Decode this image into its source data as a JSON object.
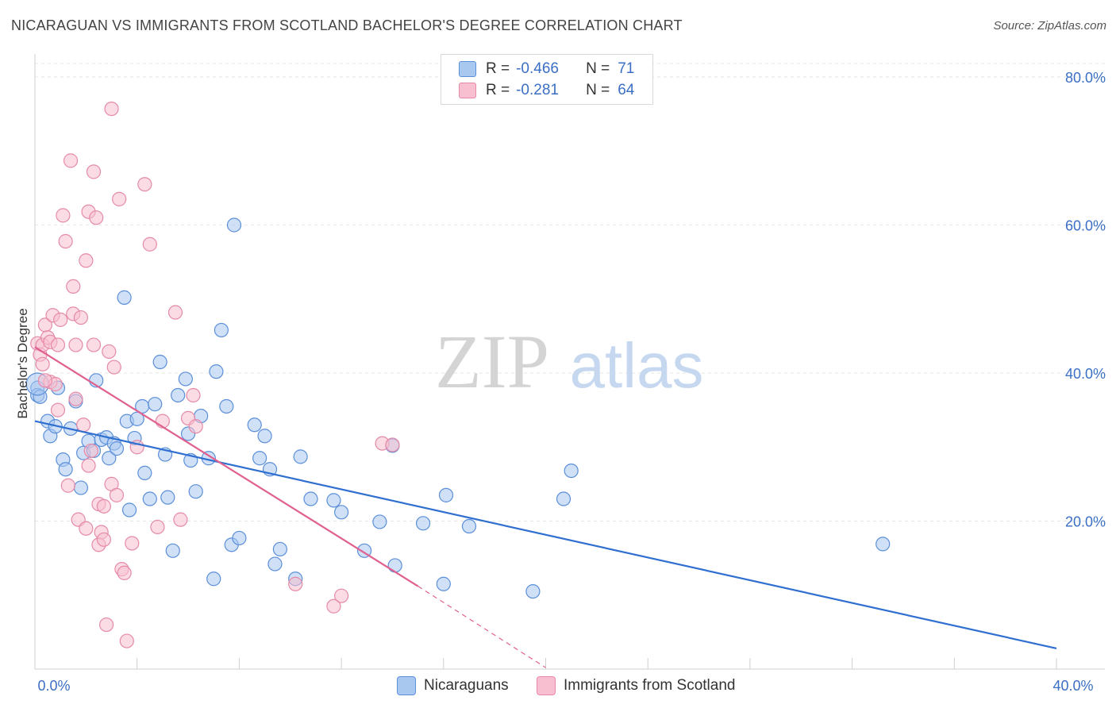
{
  "title": "NICARAGUAN VS IMMIGRANTS FROM SCOTLAND BACHELOR'S DEGREE CORRELATION CHART",
  "source": "Source: ZipAtlas.com",
  "legend": {
    "r_label": "R =",
    "n_label": "N =",
    "rows": [
      {
        "r": "-0.466",
        "n": "71",
        "color": "#a9c8f0",
        "stroke": "#5b8fd9"
      },
      {
        "r": "-0.281",
        "n": "64",
        "color": "#f7bfd0",
        "stroke": "#e58aa8"
      }
    ]
  },
  "bottom_legend": [
    "Nicaraguans",
    "Immigrants from Scotland"
  ],
  "chart_data": {
    "type": "scatter",
    "title": "NICARAGUAN VS IMMIGRANTS FROM SCOTLAND BACHELOR'S DEGREE CORRELATION CHART",
    "xlabel": "",
    "ylabel": "Bachelor's Degree",
    "xlim": [
      0,
      40
    ],
    "ylim": [
      0,
      80
    ],
    "x_tick_labels": [
      "0.0%",
      "40.0%"
    ],
    "y_ticks": [
      20,
      40,
      60,
      80
    ],
    "y_tick_labels": [
      "20.0%",
      "40.0%",
      "60.0%",
      "80.0%"
    ],
    "watermark": {
      "zip": "ZIP",
      "atlas": "atlas"
    },
    "series": [
      {
        "name": "Nicaraguans",
        "color": "#a9c8f0",
        "stroke": "#5b8fd9",
        "line_color": "#2f6fd0",
        "trend": {
          "x1": 0,
          "y1": 33.5,
          "x2": 40,
          "y2": 2.8
        },
        "points": [
          [
            0.1,
            38.0
          ],
          [
            0.1,
            37.0
          ],
          [
            0.5,
            33.5
          ],
          [
            0.6,
            31.5
          ],
          [
            0.8,
            32.8
          ],
          [
            0.9,
            38.0
          ],
          [
            1.1,
            28.3
          ],
          [
            1.2,
            27.0
          ],
          [
            1.4,
            32.5
          ],
          [
            1.6,
            36.2
          ],
          [
            1.8,
            24.5
          ],
          [
            1.9,
            29.2
          ],
          [
            2.1,
            30.8
          ],
          [
            2.3,
            29.5
          ],
          [
            2.4,
            39.0
          ],
          [
            2.6,
            31.0
          ],
          [
            2.8,
            31.3
          ],
          [
            2.9,
            28.5
          ],
          [
            3.1,
            30.5
          ],
          [
            3.2,
            29.8
          ],
          [
            3.5,
            50.2
          ],
          [
            3.6,
            33.5
          ],
          [
            3.7,
            21.5
          ],
          [
            3.9,
            31.2
          ],
          [
            4.0,
            33.8
          ],
          [
            4.3,
            26.5
          ],
          [
            4.2,
            35.5
          ],
          [
            4.5,
            23.0
          ],
          [
            4.7,
            35.8
          ],
          [
            4.9,
            41.5
          ],
          [
            5.1,
            29.0
          ],
          [
            5.2,
            23.2
          ],
          [
            5.4,
            16.0
          ],
          [
            5.6,
            37.0
          ],
          [
            5.9,
            39.2
          ],
          [
            6.0,
            31.8
          ],
          [
            6.1,
            28.2
          ],
          [
            6.3,
            24.0
          ],
          [
            6.5,
            34.2
          ],
          [
            6.8,
            28.5
          ],
          [
            7.0,
            12.2
          ],
          [
            7.1,
            40.2
          ],
          [
            7.3,
            45.8
          ],
          [
            7.5,
            35.5
          ],
          [
            7.7,
            16.8
          ],
          [
            7.8,
            60.0
          ],
          [
            8.0,
            17.7
          ],
          [
            8.6,
            33.0
          ],
          [
            8.8,
            28.5
          ],
          [
            9.0,
            31.5
          ],
          [
            9.2,
            27.0
          ],
          [
            9.4,
            14.2
          ],
          [
            9.6,
            16.2
          ],
          [
            10.2,
            12.2
          ],
          [
            10.4,
            28.7
          ],
          [
            10.8,
            23.0
          ],
          [
            11.7,
            22.8
          ],
          [
            12.0,
            21.2
          ],
          [
            12.9,
            16.0
          ],
          [
            13.5,
            19.9
          ],
          [
            14.0,
            30.2
          ],
          [
            14.1,
            14.0
          ],
          [
            15.2,
            19.7
          ],
          [
            16.0,
            11.5
          ],
          [
            16.1,
            23.5
          ],
          [
            17.0,
            19.3
          ],
          [
            19.5,
            10.5
          ],
          [
            20.7,
            23.0
          ],
          [
            21.0,
            26.8
          ],
          [
            33.2,
            16.9
          ],
          [
            0.2,
            36.8
          ]
        ]
      },
      {
        "name": "Immigrants from Scotland",
        "color": "#f7bfd0",
        "stroke": "#e58aa8",
        "line_color": "#e0608f",
        "trend": {
          "x1": 0,
          "y1": 43.5,
          "x2": 15,
          "y2": 11.2
        },
        "trend_dashed": {
          "x1": 15,
          "y1": 11.2,
          "x2": 20.0,
          "y2": 0.2
        },
        "points": [
          [
            0.1,
            44.0
          ],
          [
            0.2,
            42.5
          ],
          [
            0.3,
            41.2
          ],
          [
            0.3,
            43.8
          ],
          [
            0.4,
            46.5
          ],
          [
            0.5,
            44.8
          ],
          [
            0.6,
            44.2
          ],
          [
            0.6,
            38.8
          ],
          [
            0.7,
            47.8
          ],
          [
            0.8,
            38.5
          ],
          [
            0.9,
            35.0
          ],
          [
            0.9,
            43.8
          ],
          [
            1.0,
            47.2
          ],
          [
            1.1,
            61.3
          ],
          [
            1.2,
            57.8
          ],
          [
            1.3,
            24.8
          ],
          [
            1.4,
            68.7
          ],
          [
            1.5,
            51.7
          ],
          [
            1.5,
            48.0
          ],
          [
            1.6,
            43.8
          ],
          [
            1.7,
            20.2
          ],
          [
            1.8,
            47.5
          ],
          [
            1.9,
            33.0
          ],
          [
            2.0,
            19.0
          ],
          [
            2.0,
            55.2
          ],
          [
            2.1,
            61.8
          ],
          [
            2.1,
            27.5
          ],
          [
            2.2,
            29.5
          ],
          [
            2.3,
            67.2
          ],
          [
            2.3,
            43.8
          ],
          [
            2.4,
            61.0
          ],
          [
            2.5,
            22.3
          ],
          [
            2.5,
            16.8
          ],
          [
            2.6,
            18.5
          ],
          [
            2.7,
            17.5
          ],
          [
            2.7,
            22.0
          ],
          [
            2.8,
            6.0
          ],
          [
            2.9,
            42.9
          ],
          [
            3.0,
            75.7
          ],
          [
            3.0,
            25.0
          ],
          [
            3.1,
            40.8
          ],
          [
            3.2,
            23.5
          ],
          [
            3.3,
            63.5
          ],
          [
            3.4,
            13.5
          ],
          [
            3.5,
            13.0
          ],
          [
            3.6,
            3.8
          ],
          [
            3.8,
            17.0
          ],
          [
            4.0,
            30.0
          ],
          [
            4.3,
            65.5
          ],
          [
            4.5,
            57.4
          ],
          [
            4.8,
            19.2
          ],
          [
            5.0,
            33.5
          ],
          [
            5.5,
            48.2
          ],
          [
            5.7,
            20.2
          ],
          [
            6.0,
            33.9
          ],
          [
            6.2,
            37.0
          ],
          [
            6.3,
            32.8
          ],
          [
            10.2,
            11.5
          ],
          [
            11.7,
            8.5
          ],
          [
            12.0,
            9.9
          ],
          [
            13.6,
            30.5
          ],
          [
            14.0,
            30.3
          ],
          [
            0.4,
            39.0
          ],
          [
            1.6,
            36.5
          ]
        ]
      }
    ]
  }
}
